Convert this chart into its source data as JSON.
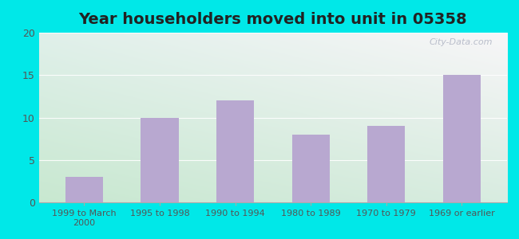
{
  "title": "Year householders moved into unit in 05358",
  "categories": [
    "1999 to March\n2000",
    "1995 to 1998",
    "1990 to 1994",
    "1980 to 1989",
    "1970 to 1979",
    "1969 or earlier"
  ],
  "values": [
    3,
    10,
    12,
    8,
    9,
    15
  ],
  "bar_color": "#b8a8d0",
  "ylim": [
    0,
    20
  ],
  "yticks": [
    0,
    5,
    10,
    15,
    20
  ],
  "background_outer": "#00e8e8",
  "background_top_left": "#e8f4ee",
  "background_top_right": "#f0eeee",
  "background_bottom_left": "#c8e8d0",
  "background_bottom_right": "#e8eaf0",
  "title_fontsize": 14,
  "watermark": "City-Data.com",
  "tick_label_fontsize": 8,
  "ytick_label_fontsize": 9
}
